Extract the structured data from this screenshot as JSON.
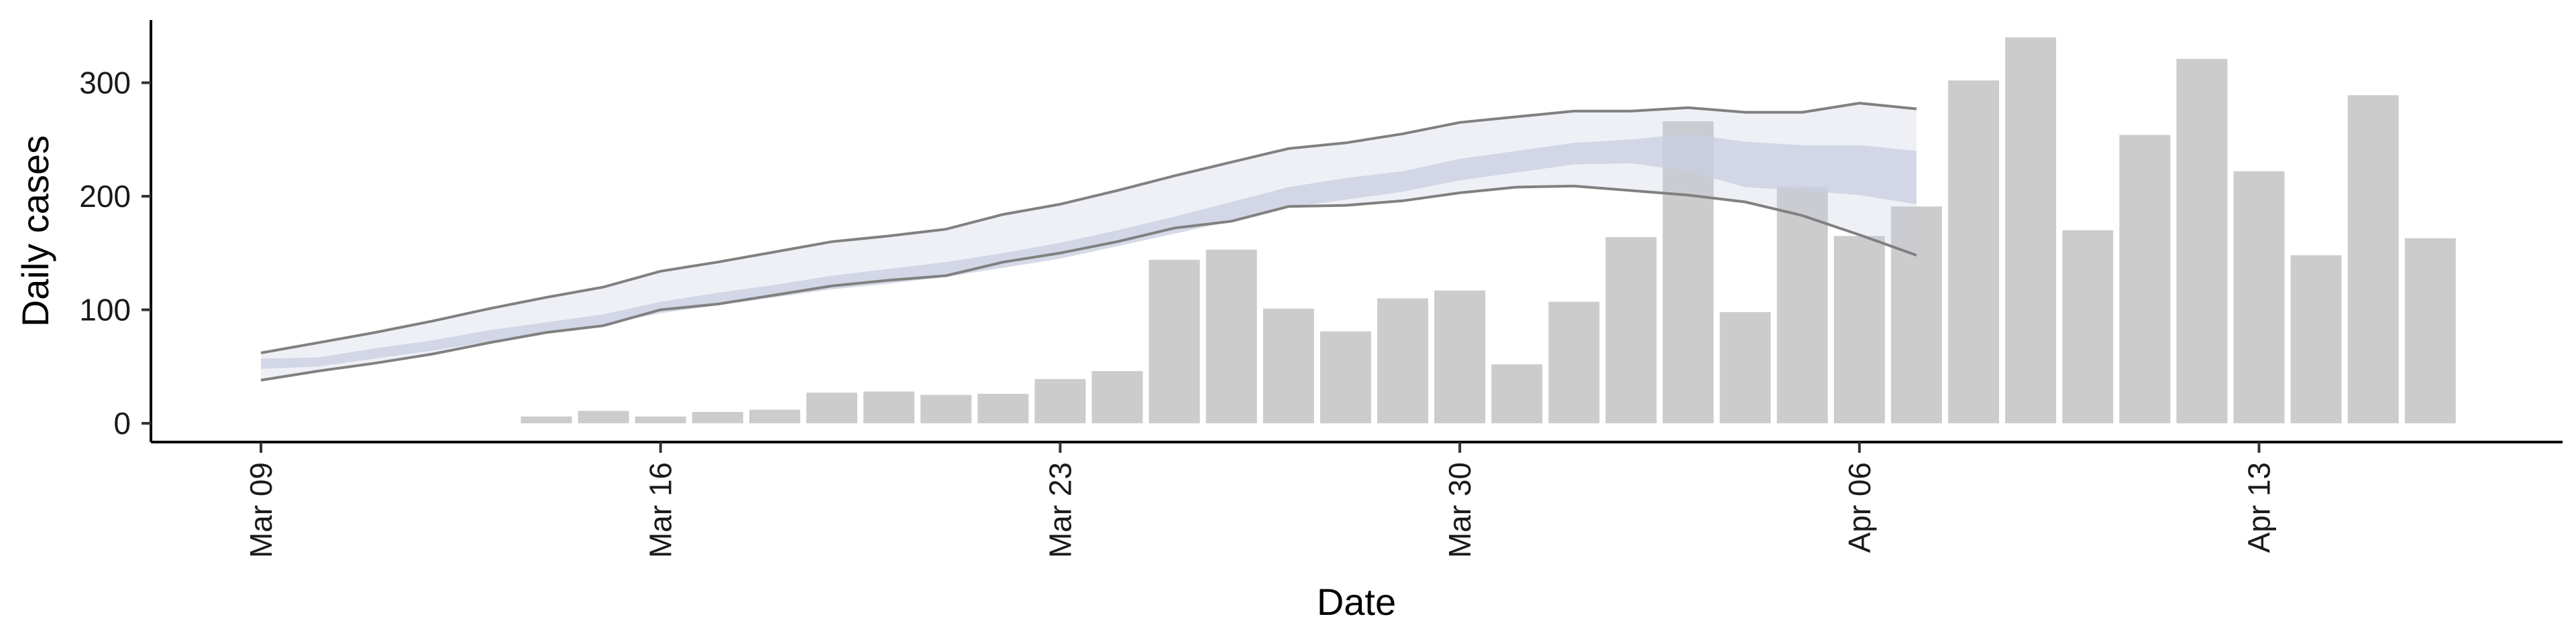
{
  "chart_data": {
    "type": "bar",
    "xlabel": "Date",
    "ylabel": "Daily cases",
    "xlim": [
      "2020-03-07",
      "2020-04-19"
    ],
    "ylim": [
      -15,
      360
    ],
    "y_ticks": [
      0,
      100,
      200,
      300
    ],
    "x_ticks": [
      {
        "date": "2020-03-09",
        "label": "Mar 09"
      },
      {
        "date": "2020-03-16",
        "label": "Mar 16"
      },
      {
        "date": "2020-03-23",
        "label": "Mar 23"
      },
      {
        "date": "2020-03-30",
        "label": "Mar 30"
      },
      {
        "date": "2020-04-06",
        "label": "Apr 06"
      },
      {
        "date": "2020-04-13",
        "label": "Apr 13"
      }
    ],
    "grid": false,
    "legend": "none",
    "bars": {
      "color": "#cccccc",
      "dates": [
        "2020-03-14",
        "2020-03-15",
        "2020-03-16",
        "2020-03-17",
        "2020-03-18",
        "2020-03-19",
        "2020-03-20",
        "2020-03-21",
        "2020-03-22",
        "2020-03-23",
        "2020-03-24",
        "2020-03-25",
        "2020-03-26",
        "2020-03-27",
        "2020-03-28",
        "2020-03-29",
        "2020-03-30",
        "2020-03-31",
        "2020-04-01",
        "2020-04-02",
        "2020-04-03",
        "2020-04-04",
        "2020-04-05",
        "2020-04-06",
        "2020-04-07",
        "2020-04-08",
        "2020-04-09",
        "2020-04-10",
        "2020-04-11",
        "2020-04-12",
        "2020-04-13",
        "2020-04-14",
        "2020-04-15",
        "2020-04-16"
      ],
      "values": [
        6,
        11,
        6,
        10,
        12,
        27,
        28,
        25,
        26,
        39,
        46,
        144,
        153,
        101,
        81,
        110,
        117,
        52,
        107,
        164,
        266,
        98,
        208,
        165,
        191,
        302,
        340,
        170,
        254,
        321,
        222,
        148,
        289,
        163
      ]
    },
    "forecast": {
      "band_color": "#c8cde0",
      "outline_color": "#808080",
      "dates": [
        "2020-03-09",
        "2020-03-10",
        "2020-03-11",
        "2020-03-12",
        "2020-03-13",
        "2020-03-14",
        "2020-03-15",
        "2020-03-16",
        "2020-03-17",
        "2020-03-18",
        "2020-03-19",
        "2020-03-20",
        "2020-03-21",
        "2020-03-22",
        "2020-03-23",
        "2020-03-24",
        "2020-03-25",
        "2020-03-26",
        "2020-03-27",
        "2020-03-28",
        "2020-03-29",
        "2020-03-30",
        "2020-03-31",
        "2020-04-01",
        "2020-04-02",
        "2020-04-03",
        "2020-04-04",
        "2020-04-05",
        "2020-04-06",
        "2020-04-07"
      ],
      "upper90": [
        62,
        71,
        80,
        90,
        101,
        111,
        120,
        134,
        142,
        151,
        160,
        165,
        171,
        184,
        193,
        205,
        218,
        230,
        242,
        247,
        255,
        265,
        270,
        275,
        275,
        278,
        274,
        274,
        282,
        277
      ],
      "upper50": [
        57,
        58,
        66,
        73,
        82,
        89,
        96,
        107,
        115,
        122,
        130,
        136,
        142,
        150,
        159,
        170,
        182,
        195,
        208,
        216,
        222,
        233,
        240,
        247,
        250,
        255,
        248,
        245,
        245,
        240
      ],
      "lower50": [
        48,
        50,
        57,
        64,
        72,
        80,
        87,
        97,
        104,
        111,
        118,
        123,
        129,
        137,
        145,
        156,
        167,
        178,
        190,
        197,
        204,
        214,
        221,
        228,
        229,
        222,
        208,
        205,
        201,
        193
      ],
      "lower90": [
        38,
        46,
        53,
        61,
        71,
        80,
        86,
        100,
        105,
        113,
        121,
        126,
        130,
        142,
        150,
        160,
        172,
        178,
        191,
        192,
        196,
        203,
        208,
        209,
        205,
        201,
        195,
        183,
        166,
        148
      ]
    }
  }
}
